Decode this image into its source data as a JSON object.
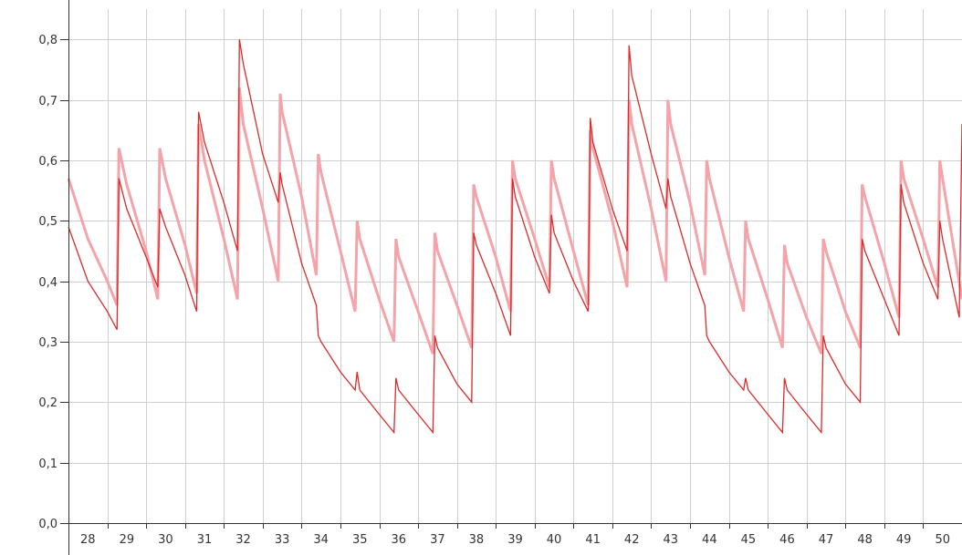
{
  "chart_data": {
    "type": "line",
    "title": "",
    "xlabel": "",
    "ylabel": "",
    "x_categories": [
      "28",
      "29",
      "30",
      "31",
      "32",
      "33",
      "34",
      "35",
      "36",
      "37",
      "38",
      "39",
      "40",
      "41",
      "42",
      "43",
      "44",
      "45",
      "46",
      "47",
      "48",
      "49",
      "50"
    ],
    "xlim": [
      27.5,
      50.5
    ],
    "ylim": [
      0,
      0.85
    ],
    "y_ticks": [
      0,
      0.1,
      0.2,
      0.3,
      0.4,
      0.5,
      0.6,
      0.7,
      0.8
    ],
    "y_tick_labels": [
      "0,0",
      "0,1",
      "0,2",
      "0,3",
      "0,4",
      "0,5",
      "0,6",
      "0,7",
      "0,8"
    ],
    "grid": true,
    "legend": "none",
    "series": [
      {
        "color": "#f4a3a8",
        "stroke_width": 3,
        "points": [
          [
            27.5,
            0.57
          ],
          [
            28.0,
            0.47
          ],
          [
            28.5,
            0.4
          ],
          [
            28.75,
            0.36
          ],
          [
            28.8,
            0.62
          ],
          [
            29.0,
            0.56
          ],
          [
            29.5,
            0.45
          ],
          [
            29.8,
            0.37
          ],
          [
            29.85,
            0.62
          ],
          [
            30.0,
            0.57
          ],
          [
            30.5,
            0.46
          ],
          [
            30.8,
            0.38
          ],
          [
            30.85,
            0.66
          ],
          [
            31.0,
            0.6
          ],
          [
            31.5,
            0.47
          ],
          [
            31.85,
            0.37
          ],
          [
            31.9,
            0.72
          ],
          [
            32.0,
            0.66
          ],
          [
            32.5,
            0.52
          ],
          [
            32.9,
            0.4
          ],
          [
            32.95,
            0.71
          ],
          [
            33.0,
            0.68
          ],
          [
            33.5,
            0.54
          ],
          [
            33.88,
            0.41
          ],
          [
            33.93,
            0.61
          ],
          [
            34.0,
            0.58
          ],
          [
            34.5,
            0.45
          ],
          [
            34.88,
            0.35
          ],
          [
            34.93,
            0.5
          ],
          [
            35.0,
            0.47
          ],
          [
            35.5,
            0.37
          ],
          [
            35.88,
            0.3
          ],
          [
            35.93,
            0.47
          ],
          [
            36.0,
            0.44
          ],
          [
            36.5,
            0.35
          ],
          [
            36.88,
            0.28
          ],
          [
            36.93,
            0.48
          ],
          [
            37.0,
            0.45
          ],
          [
            37.5,
            0.36
          ],
          [
            37.88,
            0.29
          ],
          [
            37.93,
            0.56
          ],
          [
            38.0,
            0.54
          ],
          [
            38.5,
            0.44
          ],
          [
            38.88,
            0.35
          ],
          [
            38.93,
            0.6
          ],
          [
            39.0,
            0.57
          ],
          [
            39.5,
            0.47
          ],
          [
            39.88,
            0.39
          ],
          [
            39.93,
            0.6
          ],
          [
            40.0,
            0.57
          ],
          [
            40.5,
            0.45
          ],
          [
            40.88,
            0.36
          ],
          [
            40.93,
            0.65
          ],
          [
            41.0,
            0.62
          ],
          [
            41.5,
            0.5
          ],
          [
            41.88,
            0.39
          ],
          [
            41.93,
            0.7
          ],
          [
            42.0,
            0.66
          ],
          [
            42.5,
            0.52
          ],
          [
            42.88,
            0.4
          ],
          [
            42.93,
            0.7
          ],
          [
            43.0,
            0.66
          ],
          [
            43.5,
            0.53
          ],
          [
            43.88,
            0.41
          ],
          [
            43.93,
            0.6
          ],
          [
            44.0,
            0.57
          ],
          [
            44.5,
            0.44
          ],
          [
            44.88,
            0.35
          ],
          [
            44.93,
            0.5
          ],
          [
            45.0,
            0.47
          ],
          [
            45.5,
            0.37
          ],
          [
            45.88,
            0.29
          ],
          [
            45.93,
            0.46
          ],
          [
            46.0,
            0.43
          ],
          [
            46.5,
            0.34
          ],
          [
            46.88,
            0.28
          ],
          [
            46.93,
            0.47
          ],
          [
            47.0,
            0.45
          ],
          [
            47.5,
            0.35
          ],
          [
            47.88,
            0.29
          ],
          [
            47.93,
            0.56
          ],
          [
            48.0,
            0.54
          ],
          [
            48.5,
            0.43
          ],
          [
            48.88,
            0.34
          ],
          [
            48.93,
            0.6
          ],
          [
            49.0,
            0.57
          ],
          [
            49.5,
            0.47
          ],
          [
            49.88,
            0.39
          ],
          [
            49.93,
            0.6
          ],
          [
            50.0,
            0.57
          ],
          [
            50.5,
            0.37
          ]
        ]
      },
      {
        "color": "#dd2a2a",
        "stroke_width": 1.3,
        "points": [
          [
            27.5,
            0.49
          ],
          [
            28.0,
            0.4
          ],
          [
            28.5,
            0.35
          ],
          [
            28.75,
            0.32
          ],
          [
            28.8,
            0.57
          ],
          [
            29.0,
            0.52
          ],
          [
            29.5,
            0.44
          ],
          [
            29.8,
            0.39
          ],
          [
            29.85,
            0.52
          ],
          [
            30.0,
            0.49
          ],
          [
            30.5,
            0.41
          ],
          [
            30.8,
            0.35
          ],
          [
            30.85,
            0.68
          ],
          [
            31.0,
            0.63
          ],
          [
            31.5,
            0.53
          ],
          [
            31.85,
            0.45
          ],
          [
            31.9,
            0.8
          ],
          [
            32.0,
            0.76
          ],
          [
            32.5,
            0.61
          ],
          [
            32.9,
            0.53
          ],
          [
            32.95,
            0.58
          ],
          [
            33.0,
            0.56
          ],
          [
            33.5,
            0.43
          ],
          [
            33.88,
            0.36
          ],
          [
            33.93,
            0.31
          ],
          [
            34.0,
            0.3
          ],
          [
            34.5,
            0.25
          ],
          [
            34.88,
            0.22
          ],
          [
            34.93,
            0.25
          ],
          [
            35.0,
            0.22
          ],
          [
            35.5,
            0.18
          ],
          [
            35.88,
            0.15
          ],
          [
            35.93,
            0.24
          ],
          [
            36.0,
            0.22
          ],
          [
            36.5,
            0.18
          ],
          [
            36.88,
            0.15
          ],
          [
            36.93,
            0.31
          ],
          [
            37.0,
            0.29
          ],
          [
            37.5,
            0.23
          ],
          [
            37.88,
            0.2
          ],
          [
            37.93,
            0.48
          ],
          [
            38.0,
            0.46
          ],
          [
            38.5,
            0.38
          ],
          [
            38.88,
            0.31
          ],
          [
            38.93,
            0.57
          ],
          [
            39.0,
            0.54
          ],
          [
            39.5,
            0.44
          ],
          [
            39.88,
            0.38
          ],
          [
            39.93,
            0.51
          ],
          [
            40.0,
            0.48
          ],
          [
            40.5,
            0.4
          ],
          [
            40.88,
            0.35
          ],
          [
            40.93,
            0.67
          ],
          [
            41.0,
            0.63
          ],
          [
            41.5,
            0.52
          ],
          [
            41.88,
            0.45
          ],
          [
            41.93,
            0.79
          ],
          [
            42.0,
            0.74
          ],
          [
            42.5,
            0.61
          ],
          [
            42.88,
            0.52
          ],
          [
            42.93,
            0.57
          ],
          [
            43.0,
            0.54
          ],
          [
            43.5,
            0.43
          ],
          [
            43.88,
            0.36
          ],
          [
            43.93,
            0.31
          ],
          [
            44.0,
            0.3
          ],
          [
            44.5,
            0.25
          ],
          [
            44.88,
            0.22
          ],
          [
            44.93,
            0.24
          ],
          [
            45.0,
            0.22
          ],
          [
            45.5,
            0.18
          ],
          [
            45.88,
            0.15
          ],
          [
            45.93,
            0.24
          ],
          [
            46.0,
            0.22
          ],
          [
            46.5,
            0.18
          ],
          [
            46.88,
            0.15
          ],
          [
            46.93,
            0.31
          ],
          [
            47.0,
            0.29
          ],
          [
            47.5,
            0.23
          ],
          [
            47.88,
            0.2
          ],
          [
            47.93,
            0.47
          ],
          [
            48.0,
            0.45
          ],
          [
            48.5,
            0.37
          ],
          [
            48.88,
            0.31
          ],
          [
            48.93,
            0.56
          ],
          [
            49.0,
            0.53
          ],
          [
            49.5,
            0.43
          ],
          [
            49.88,
            0.37
          ],
          [
            49.93,
            0.5
          ],
          [
            50.0,
            0.47
          ],
          [
            50.43,
            0.34
          ],
          [
            50.5,
            0.66
          ]
        ]
      }
    ]
  }
}
